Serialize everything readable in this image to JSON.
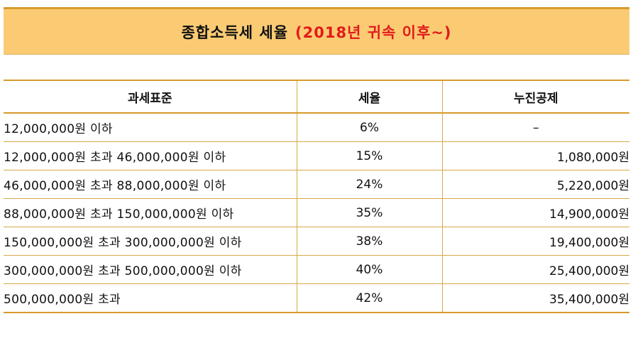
{
  "title": {
    "main": "종합소득세 세율",
    "accent": "(2018년 귀속 이후~)"
  },
  "table": {
    "headers": [
      "과세표준",
      "세율",
      "누진공제"
    ],
    "rows": [
      [
        "12,000,000원 이하",
        "6%",
        "–"
      ],
      [
        "12,000,000원 초과 46,000,000원 이하",
        "15%",
        "1,080,000원"
      ],
      [
        "46,000,000원 초과 88,000,000원 이하",
        "24%",
        "5,220,000원"
      ],
      [
        "88,000,000원 초과 150,000,000원 이하",
        "35%",
        "14,900,000원"
      ],
      [
        "150,000,000원 초과 300,000,000원 이하",
        "38%",
        "19,400,000원"
      ],
      [
        "300,000,000원 초과 500,000,000원 이하",
        "40%",
        "25,400,000원"
      ],
      [
        "500,000,000원 초과",
        "42%",
        "35,400,000원"
      ]
    ]
  },
  "colors": {
    "title_background": "#fbcb73",
    "accent_text": "#e11b1b",
    "rule": "#d89a2c"
  }
}
